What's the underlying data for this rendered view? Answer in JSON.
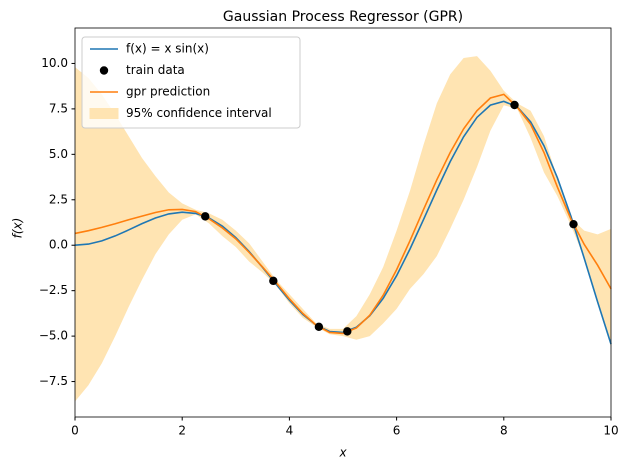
{
  "chart_data": {
    "type": "line",
    "title": "Gaussian Process Regressor (GPR)",
    "x_label": "x",
    "y_label": "f(x)",
    "xlim": [
      0,
      10
    ],
    "ylim": [
      -9.45,
      11.95
    ],
    "xticks": [
      0,
      2,
      4,
      6,
      8,
      10
    ],
    "yticks": [
      {
        "value": -7.5,
        "label": "−7.5"
      },
      {
        "value": -5,
        "label": "−5.0"
      },
      {
        "value": -2.5,
        "label": "−2.5"
      },
      {
        "value": 0,
        "label": "0.0"
      },
      {
        "value": 2.5,
        "label": "2.5"
      },
      {
        "value": 5,
        "label": "5.0"
      },
      {
        "value": 7.5,
        "label": "7.5"
      },
      {
        "value": 10,
        "label": "10.0"
      }
    ],
    "grid": false,
    "legend": "upper left",
    "x": [
      0,
      0.25,
      0.5,
      0.75,
      1,
      1.25,
      1.5,
      1.75,
      2,
      2.25,
      2.5,
      2.75,
      3,
      3.25,
      3.5,
      3.75,
      4,
      4.25,
      4.5,
      4.75,
      5,
      5.25,
      5.5,
      5.75,
      6,
      6.25,
      6.5,
      6.75,
      7,
      7.25,
      7.5,
      7.75,
      8,
      8.25,
      8.5,
      8.75,
      9,
      9.25,
      9.5,
      9.75,
      10
    ],
    "series": [
      {
        "name": "f(x) = x sin(x)",
        "type": "line",
        "color": "#1f77b4",
        "values": [
          0,
          0.062,
          0.24,
          0.511,
          0.841,
          1.186,
          1.496,
          1.722,
          1.819,
          1.751,
          1.496,
          1.05,
          0.423,
          -0.352,
          -1.228,
          -2.143,
          -3.027,
          -3.804,
          -4.399,
          -4.747,
          -4.795,
          -4.509,
          -3.88,
          -2.923,
          -1.676,
          -0.207,
          1.398,
          3.038,
          4.599,
          5.967,
          7.035,
          7.708,
          7.915,
          7.613,
          6.787,
          5.466,
          3.709,
          1.612,
          -0.714,
          -3.118,
          -5.44
        ]
      },
      {
        "name": "train data",
        "type": "scatter",
        "color": "#000000",
        "x": [
          2.43,
          3.7,
          4.55,
          5.08,
          8.2,
          9.3
        ],
        "values": [
          1.587,
          -1.96,
          -4.49,
          -4.74,
          7.714,
          1.158
        ]
      },
      {
        "name": "gpr prediction",
        "type": "line",
        "color": "#ff7f0e",
        "values": [
          0.65,
          0.8,
          0.98,
          1.18,
          1.4,
          1.6,
          1.8,
          1.95,
          1.97,
          1.85,
          1.45,
          0.95,
          0.35,
          -0.4,
          -1.2,
          -2.05,
          -2.95,
          -3.75,
          -4.4,
          -4.8,
          -4.85,
          -4.55,
          -3.85,
          -2.75,
          -1.35,
          0.25,
          1.95,
          3.6,
          5.1,
          6.4,
          7.4,
          8.1,
          8.3,
          7.6,
          6.65,
          5.1,
          3.2,
          1.45,
          0.05,
          -1.1,
          -2.4
        ]
      },
      {
        "name": "95% confidence interval",
        "type": "band",
        "color": "#ffe4b2",
        "upper": [
          9.8,
          9.2,
          8.3,
          7.2,
          6.0,
          4.8,
          3.8,
          2.9,
          2.3,
          1.95,
          1.75,
          1.4,
          0.8,
          0.1,
          -0.9,
          -1.9,
          -2.7,
          -3.5,
          -4.3,
          -4.6,
          -4.6,
          -3.9,
          -2.7,
          -1.2,
          0.8,
          3.0,
          5.5,
          7.8,
          9.4,
          10.3,
          10.4,
          9.6,
          8.5,
          7.8,
          7.4,
          6.0,
          3.7,
          1.5,
          0.8,
          0.6,
          0.9
        ],
        "lower": [
          -8.6,
          -7.7,
          -6.5,
          -5.0,
          -3.4,
          -1.9,
          -0.5,
          0.6,
          1.4,
          1.7,
          1.2,
          0.5,
          -0.1,
          -0.9,
          -1.5,
          -2.2,
          -3.2,
          -4.0,
          -4.5,
          -4.9,
          -5.0,
          -5.2,
          -5.0,
          -4.3,
          -3.5,
          -2.4,
          -1.6,
          -0.6,
          0.9,
          2.5,
          4.3,
          6.3,
          7.7,
          7.5,
          5.9,
          4.0,
          2.7,
          1.1,
          -0.7,
          -3.0,
          -5.6
        ]
      }
    ]
  }
}
